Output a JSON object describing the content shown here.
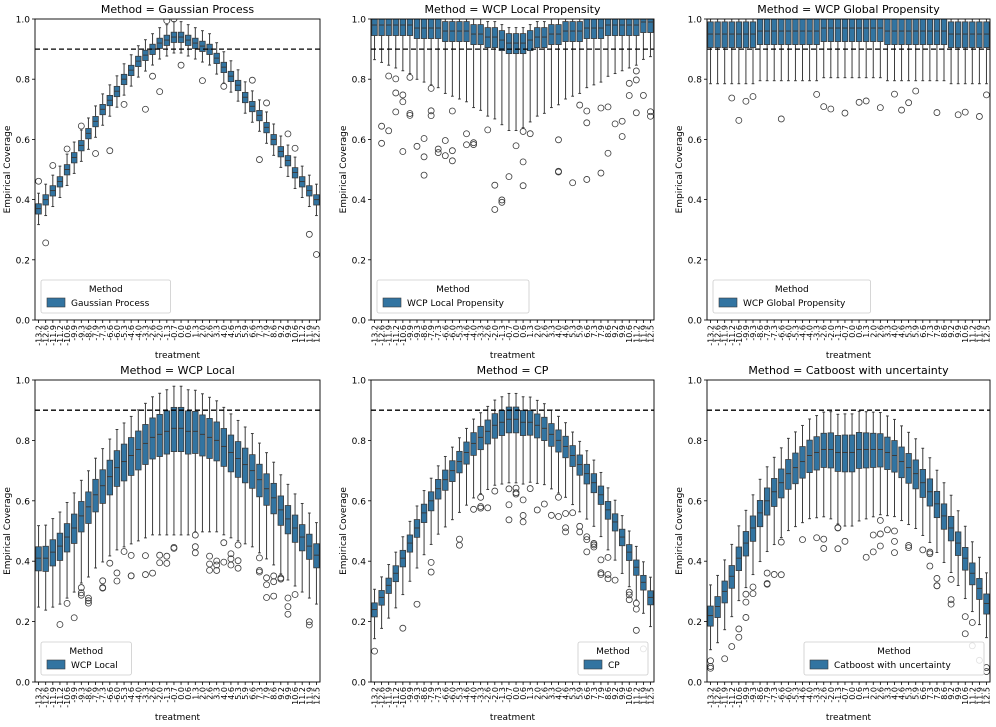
{
  "chart_data": {
    "type": "box",
    "figure_title": "",
    "x_ticks": [
      "-13.2",
      "-12.6",
      "-11.9",
      "-11.2",
      "-10.6",
      "-9.9",
      "-9.3",
      "-8.6",
      "-7.9",
      "-7.3",
      "-6.6",
      "-6.0",
      "-5.3",
      "-4.6",
      "-4.0",
      "-3.3",
      "-2.6",
      "-2.0",
      "-1.3",
      "-0.7",
      "0.0",
      "0.6",
      "1.3",
      "2.0",
      "2.6",
      "3.3",
      "4.0",
      "4.6",
      "5.3",
      "5.9",
      "6.6",
      "7.3",
      "7.9",
      "8.6",
      "9.2",
      "9.9",
      "10.6",
      "11.2",
      "11.9",
      "12.5"
    ],
    "xlabel": "treatment",
    "ylabel": "Empirical Coverage",
    "ylim": [
      0.0,
      1.0
    ],
    "y_ticks": [
      "0.0",
      "0.2",
      "0.4",
      "0.6",
      "0.8",
      "1.0"
    ],
    "reference_line": 0.9,
    "box_color": "#3274a1",
    "legend_title": "Method",
    "panels": [
      {
        "title": "Method = Gaussian Process",
        "legend_label": "Gaussian Process",
        "shape": "gp",
        "median": [
          0.37,
          0.4,
          0.43,
          0.46,
          0.5,
          0.54,
          0.58,
          0.62,
          0.66,
          0.7,
          0.73,
          0.76,
          0.8,
          0.83,
          0.86,
          0.88,
          0.9,
          0.92,
          0.93,
          0.94,
          0.94,
          0.93,
          0.92,
          0.91,
          0.9,
          0.87,
          0.84,
          0.81,
          0.78,
          0.74,
          0.71,
          0.68,
          0.64,
          0.6,
          0.56,
          0.53,
          0.49,
          0.46,
          0.43,
          0.4
        ]
      },
      {
        "title": "Method = WCP Local Propensity",
        "legend_label": "WCP Local Propensity",
        "shape": "wlp",
        "median": [
          0.98,
          0.98,
          0.98,
          0.98,
          0.98,
          0.98,
          0.97,
          0.97,
          0.97,
          0.97,
          0.96,
          0.96,
          0.96,
          0.96,
          0.95,
          0.95,
          0.94,
          0.94,
          0.93,
          0.92,
          0.92,
          0.92,
          0.93,
          0.94,
          0.94,
          0.95,
          0.95,
          0.96,
          0.96,
          0.96,
          0.97,
          0.97,
          0.97,
          0.98,
          0.98,
          0.98,
          0.98,
          0.98,
          0.99,
          0.99
        ]
      },
      {
        "title": "Method = WCP Global Propensity",
        "legend_label": "WCP Global Propensity",
        "shape": "wgp",
        "median": [
          0.95,
          0.95,
          0.95,
          0.95,
          0.95,
          0.95,
          0.95,
          0.96,
          0.96,
          0.96,
          0.96,
          0.96,
          0.96,
          0.96,
          0.96,
          0.96,
          0.97,
          0.97,
          0.97,
          0.97,
          0.97,
          0.97,
          0.97,
          0.97,
          0.97,
          0.96,
          0.96,
          0.96,
          0.96,
          0.96,
          0.96,
          0.96,
          0.96,
          0.96,
          0.95,
          0.95,
          0.95,
          0.95,
          0.95,
          0.95
        ]
      },
      {
        "title": "Method = WCP Local",
        "legend_label": "WCP Local",
        "shape": "wl",
        "median": [
          0.41,
          0.41,
          0.43,
          0.45,
          0.48,
          0.51,
          0.55,
          0.58,
          0.62,
          0.65,
          0.68,
          0.71,
          0.73,
          0.75,
          0.77,
          0.79,
          0.81,
          0.82,
          0.83,
          0.84,
          0.84,
          0.83,
          0.83,
          0.82,
          0.81,
          0.8,
          0.78,
          0.76,
          0.74,
          0.72,
          0.7,
          0.67,
          0.64,
          0.61,
          0.57,
          0.54,
          0.51,
          0.48,
          0.45,
          0.42
        ]
      },
      {
        "title": "Method = CP",
        "legend_label": "CP",
        "shape": "cp",
        "median": [
          0.24,
          0.28,
          0.32,
          0.36,
          0.41,
          0.46,
          0.51,
          0.56,
          0.6,
          0.64,
          0.67,
          0.7,
          0.73,
          0.76,
          0.79,
          0.81,
          0.83,
          0.85,
          0.86,
          0.87,
          0.87,
          0.86,
          0.86,
          0.85,
          0.84,
          0.82,
          0.8,
          0.78,
          0.75,
          0.72,
          0.69,
          0.66,
          0.62,
          0.57,
          0.53,
          0.48,
          0.43,
          0.38,
          0.33,
          0.28
        ]
      },
      {
        "title": "Method = Catboost with uncertainty",
        "legend_label": "Catboost with uncertainty",
        "shape": "cb",
        "median": [
          0.22,
          0.25,
          0.3,
          0.35,
          0.41,
          0.46,
          0.51,
          0.56,
          0.6,
          0.63,
          0.66,
          0.69,
          0.71,
          0.73,
          0.75,
          0.76,
          0.77,
          0.77,
          0.76,
          0.76,
          0.76,
          0.77,
          0.77,
          0.77,
          0.77,
          0.76,
          0.75,
          0.73,
          0.71,
          0.69,
          0.66,
          0.63,
          0.59,
          0.55,
          0.51,
          0.46,
          0.41,
          0.36,
          0.31,
          0.26
        ]
      }
    ]
  }
}
